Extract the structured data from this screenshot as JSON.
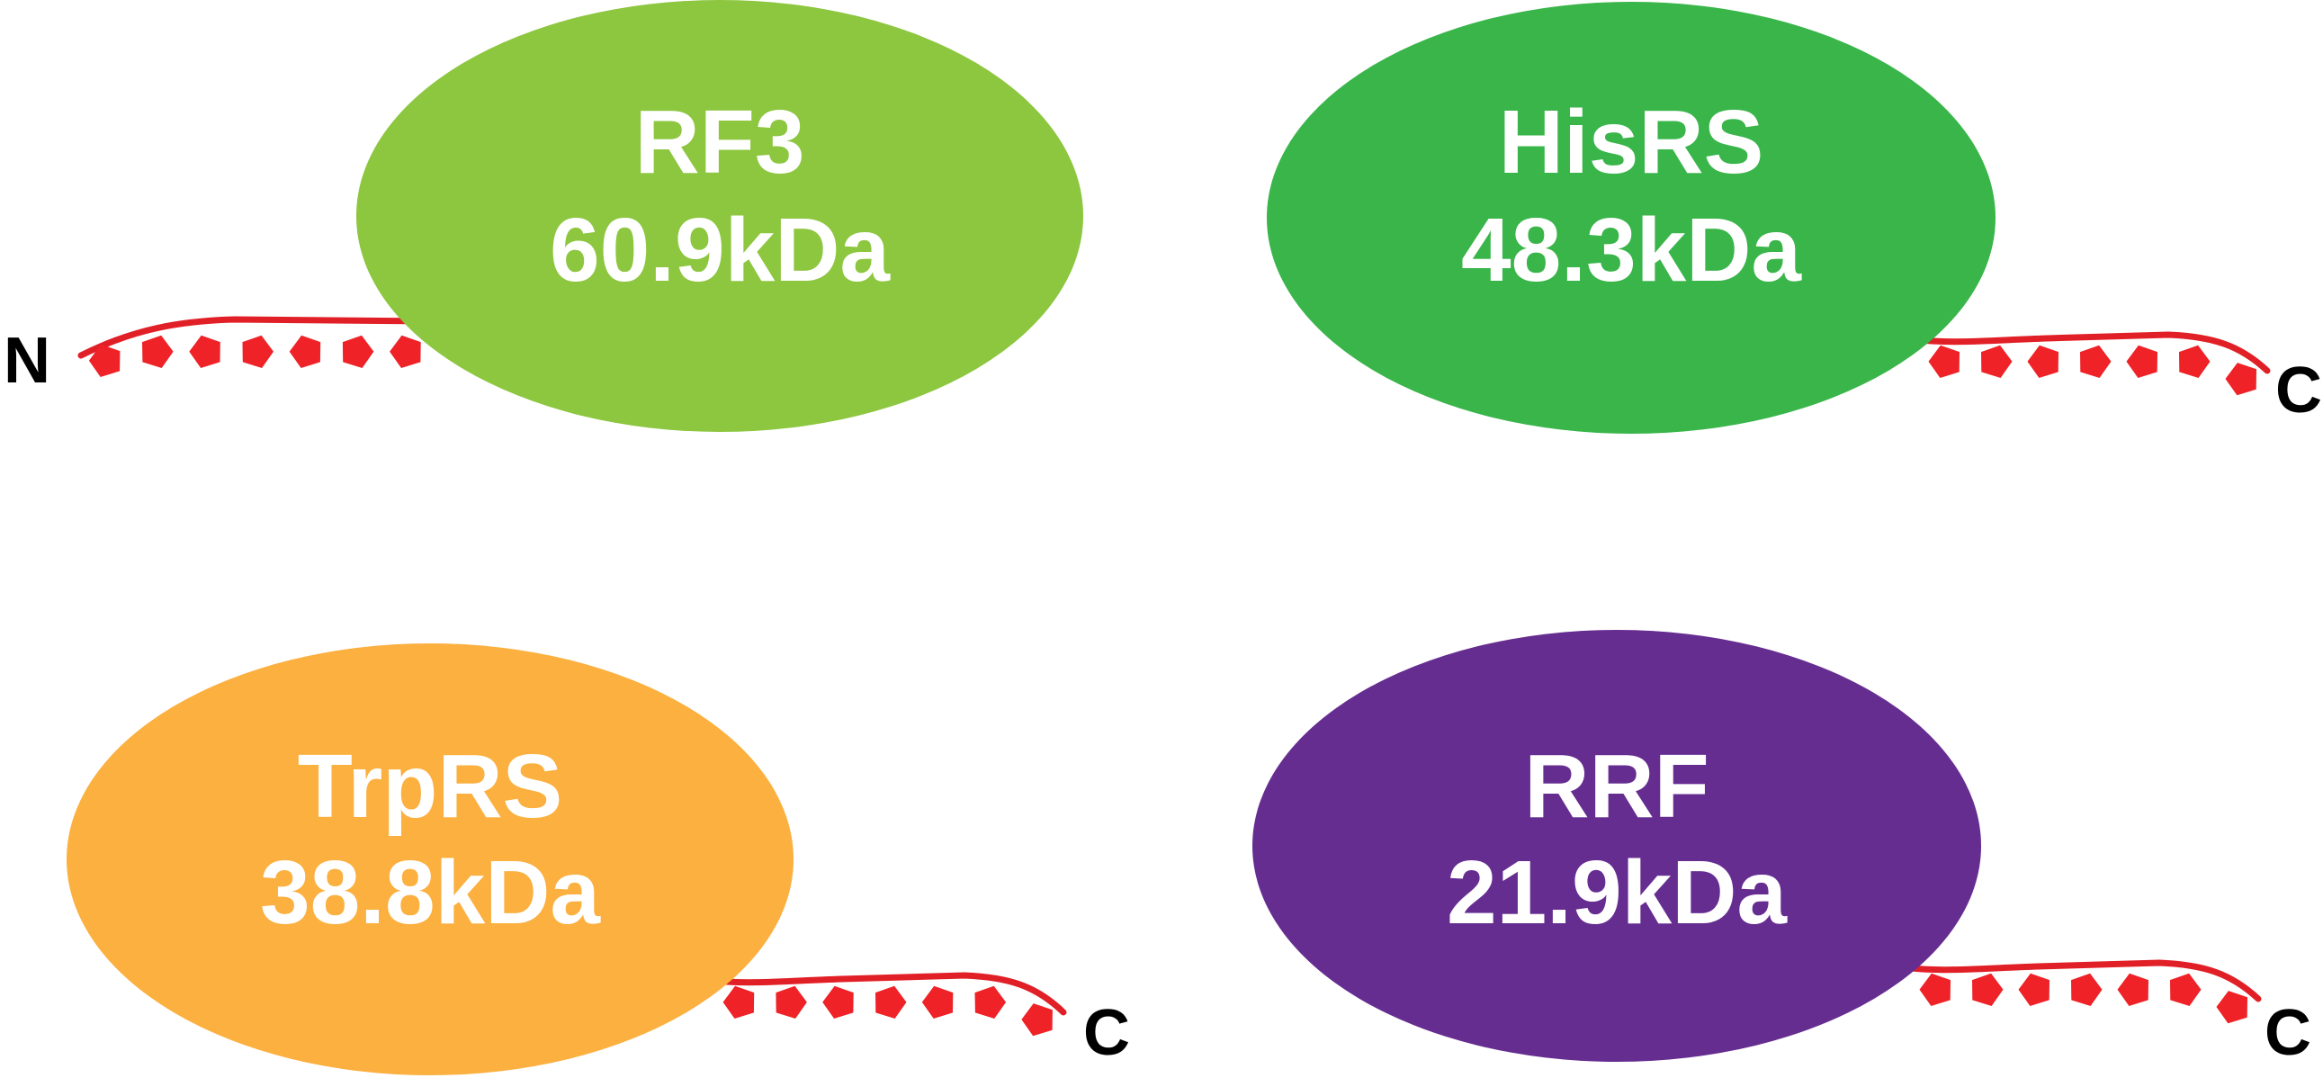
{
  "proteins": [
    {
      "name": "RF3",
      "mass": "60.9kDa",
      "color": "#8dc63f",
      "terminus": "N"
    },
    {
      "name": "HisRS",
      "mass": "48.3kDa",
      "color": "#39b54a",
      "terminus": "C"
    },
    {
      "name": "TrpRS",
      "mass": "38.8kDa",
      "color": "#fbb040",
      "terminus": "C"
    },
    {
      "name": "RRF",
      "mass": "21.9kDa",
      "color": "#662d91",
      "terminus": "C"
    }
  ],
  "colors": {
    "tag": "#ee2227",
    "label_text": "#ffffff",
    "terminus_text": "#000000"
  }
}
